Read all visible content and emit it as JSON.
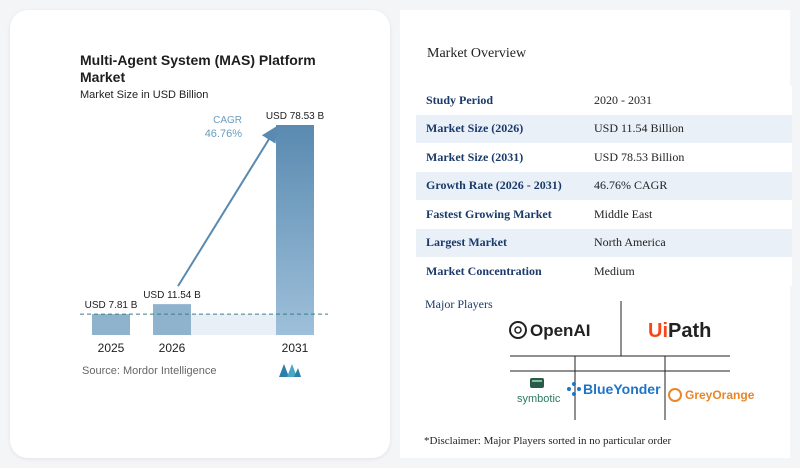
{
  "chart": {
    "title": "Multi-Agent System (MAS) Platform Market",
    "subtitle": "Market Size in USD Billion",
    "source": "Source: Mordor Intelligence",
    "cagr_label": "CAGR",
    "cagr_value": "46.76%"
  },
  "chart_data": {
    "type": "bar",
    "title": "Multi-Agent System (MAS) Platform Market",
    "subtitle": "Market Size in USD Billion",
    "categories": [
      "2025",
      "2026",
      "2031"
    ],
    "values": [
      7.81,
      11.54,
      78.53
    ],
    "data_labels": [
      "USD 7.81 B",
      "USD 11.54 B",
      "USD 78.53 B"
    ],
    "annotation": {
      "label": "CAGR",
      "value": "46.76%"
    },
    "colors": {
      "bar_light": "#8fb2cd",
      "bar_dark": "#5a8ab0",
      "arrow": "#5a8ab0",
      "gap_fill": "#e8eff6",
      "dashed_line": "#3d7e8a"
    }
  },
  "overview": {
    "title": "Market Overview",
    "rows": [
      {
        "key": "Study Period",
        "value": "2020 - 2031"
      },
      {
        "key": "Market Size (2026)",
        "value": "USD 11.54 Billion"
      },
      {
        "key": "Market Size (2031)",
        "value": "USD 78.53 Billion"
      },
      {
        "key": "Growth Rate (2026 - 2031)",
        "value": "46.76% CAGR"
      },
      {
        "key": "Fastest Growing Market",
        "value": "Middle East"
      },
      {
        "key": "Largest Market",
        "value": "North America"
      },
      {
        "key": "Market Concentration",
        "value": "Medium"
      }
    ],
    "players_title": "Major Players",
    "players": {
      "openai": "OpenAI",
      "uipath_ui": "Ui",
      "uipath_path": "Path",
      "blueyonder": "BlueYonder",
      "symbotic": "symbotic",
      "greyorange": "GreyOrange"
    },
    "disclaimer": "*Disclaimer: Major Players sorted in no particular order"
  }
}
